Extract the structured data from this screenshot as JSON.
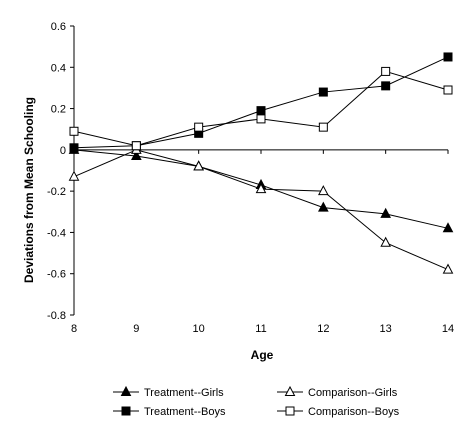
{
  "chart_data": {
    "type": "line",
    "title": "",
    "xlabel": "Age",
    "ylabel": "Deviations from Mean Schooling",
    "x": [
      8,
      9,
      10,
      11,
      12,
      13,
      14
    ],
    "xlim": [
      8,
      14
    ],
    "ylim": [
      -0.8,
      0.6
    ],
    "yticks": [
      0.6,
      0.4,
      0.2,
      0,
      -0.2,
      -0.4,
      -0.6,
      -0.8
    ],
    "ytick_labels": [
      "0.6",
      "0.4",
      "0.2",
      "0",
      "-0.2",
      "-0.4",
      "-0.6",
      "-0.8"
    ],
    "xtick_labels": [
      "8",
      "9",
      "10",
      "11",
      "12",
      "13",
      "14"
    ],
    "grid": false,
    "legend_position": "bottom",
    "series": [
      {
        "name": "Treatment--Girls",
        "marker": "triangle-filled",
        "values": [
          0.0,
          -0.03,
          -0.08,
          -0.17,
          -0.28,
          -0.31,
          -0.38
        ]
      },
      {
        "name": "Comparison--Girls",
        "marker": "triangle-open",
        "values": [
          -0.13,
          0.0,
          -0.08,
          -0.19,
          -0.2,
          -0.45,
          -0.58
        ]
      },
      {
        "name": "Treatment--Boys",
        "marker": "square-filled",
        "values": [
          0.01,
          0.02,
          0.08,
          0.19,
          0.28,
          0.31,
          0.45
        ]
      },
      {
        "name": "Comparison--Boys",
        "marker": "square-open",
        "values": [
          0.09,
          0.02,
          0.11,
          0.15,
          0.11,
          0.38,
          0.29
        ]
      }
    ]
  }
}
